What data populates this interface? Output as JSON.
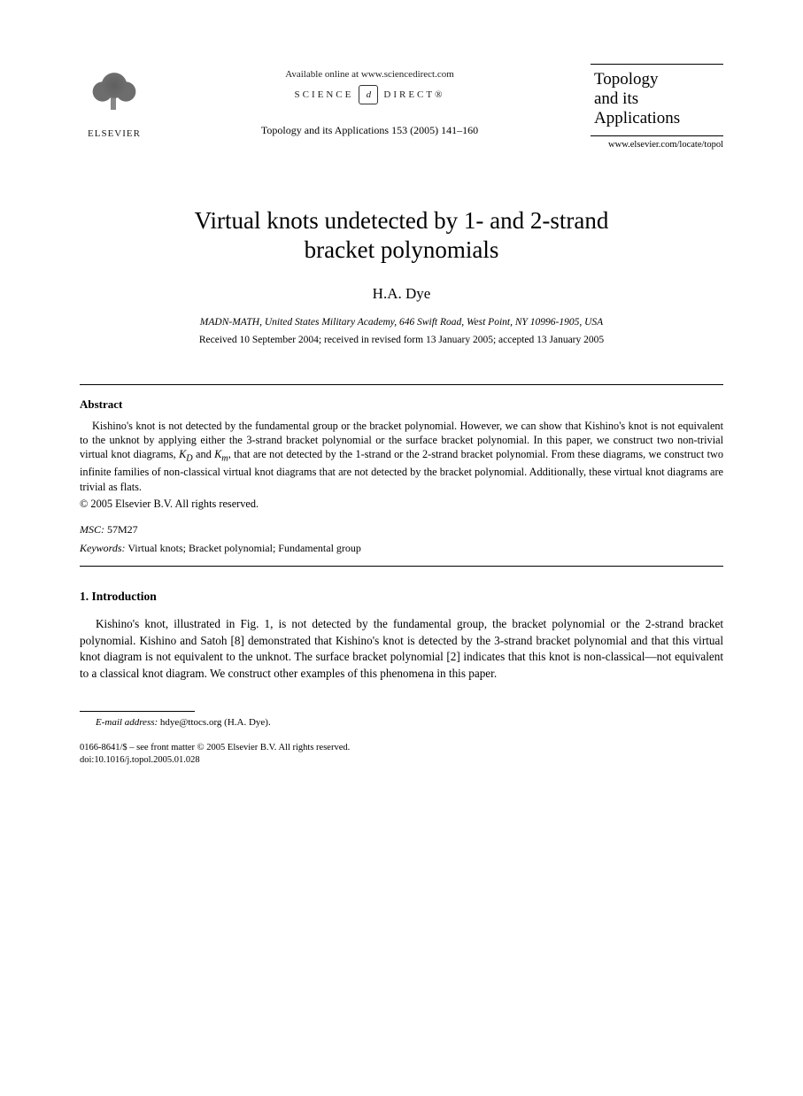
{
  "header": {
    "publisher_name": "ELSEVIER",
    "available_text": "Available online at www.sciencedirect.com",
    "sd_left": "SCIENCE",
    "sd_d": "d",
    "sd_right": "DIRECT®",
    "citation": "Topology and its Applications 153 (2005) 141–160",
    "journal_title_l1": "Topology",
    "journal_title_l2": "and its",
    "journal_title_l3": "Applications",
    "journal_url": "www.elsevier.com/locate/topol"
  },
  "article": {
    "title_l1": "Virtual knots undetected by 1- and 2-strand",
    "title_l2": "bracket polynomials",
    "author": "H.A. Dye",
    "affiliation": "MADN-MATH, United States Military Academy, 646 Swift Road, West Point, NY 10996-1905, USA",
    "dates": "Received 10 September 2004; received in revised form 13 January 2005; accepted 13 January 2005"
  },
  "abstract": {
    "heading": "Abstract",
    "body": "Kishino's knot is not detected by the fundamental group or the bracket polynomial. However, we can show that Kishino's knot is not equivalent to the unknot by applying either the 3-strand bracket polynomial or the surface bracket polynomial. In this paper, we construct two non-trivial virtual knot diagrams, K_D and K_m, that are not detected by the 1-strand or the 2-strand bracket polynomial. From these diagrams, we construct two infinite families of non-classical virtual knot diagrams that are not detected by the bracket polynomial. Additionally, these virtual knot diagrams are trivial as flats.",
    "copyright": "© 2005 Elsevier B.V. All rights reserved.",
    "msc_label": "MSC:",
    "msc_value": "57M27",
    "keywords_label": "Keywords:",
    "keywords_value": "Virtual knots; Bracket polynomial; Fundamental group"
  },
  "intro": {
    "heading": "1.  Introduction",
    "body": "Kishino's knot, illustrated in Fig. 1, is not detected by the fundamental group, the bracket polynomial or the 2-strand bracket polynomial. Kishino and Satoh [8] demonstrated that Kishino's knot is detected by the 3-strand bracket polynomial and that this virtual knot diagram is not equivalent to the unknot. The surface bracket polynomial [2] indicates that this knot is non-classical—not equivalent to a classical knot diagram. We construct other examples of this phenomena in this paper."
  },
  "footer": {
    "email_label": "E-mail address:",
    "email_value": "hdye@ttocs.org (H.A. Dye).",
    "issn_line": "0166-8641/$ – see front matter © 2005 Elsevier B.V. All rights reserved.",
    "doi_line": "doi:10.1016/j.topol.2005.01.028"
  }
}
